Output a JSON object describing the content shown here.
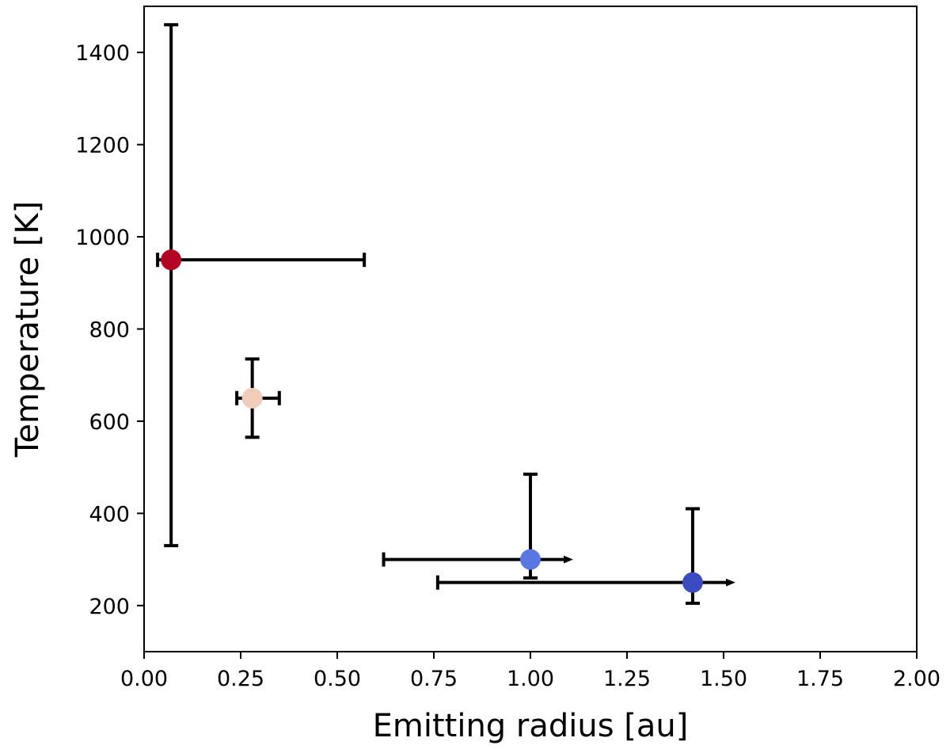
{
  "chart_data": {
    "type": "scatter",
    "title": "",
    "xlabel": "Emitting radius [au]",
    "ylabel": "Temperature [K]",
    "xlim": [
      0,
      2
    ],
    "ylim": [
      100,
      1500
    ],
    "xticks": [
      0,
      0.25,
      0.5,
      0.75,
      1,
      1.25,
      1.5,
      1.75,
      2
    ],
    "xtick_labels": [
      "0.00",
      "0.25",
      "0.50",
      "0.75",
      "1.00",
      "1.25",
      "1.50",
      "1.75",
      "2.00"
    ],
    "yticks": [
      200,
      400,
      600,
      800,
      1000,
      1200,
      1400
    ],
    "ytick_labels": [
      "200",
      "400",
      "600",
      "800",
      "1000",
      "1200",
      "1400"
    ],
    "grid": false,
    "legend": "none",
    "points": [
      {
        "x": 0.07,
        "y": 950,
        "x_err": [
          0.035,
          0.5
        ],
        "y_err": [
          620,
          510
        ],
        "x_lower_limit": false,
        "color": "#b40426"
      },
      {
        "x": 0.28,
        "y": 650,
        "x_err": [
          0.04,
          0.07
        ],
        "y_err": [
          85,
          85
        ],
        "x_lower_limit": false,
        "color": "#f0cdbb"
      },
      {
        "x": 1.0,
        "y": 300,
        "x_err": [
          0.38,
          0.0
        ],
        "y_err": [
          40,
          185
        ],
        "x_lower_limit": true,
        "color": "#5977e3"
      },
      {
        "x": 1.42,
        "y": 250,
        "x_err": [
          0.66,
          0.0
        ],
        "y_err": [
          45,
          160
        ],
        "x_lower_limit": true,
        "color": "#3b4cc0"
      }
    ]
  }
}
